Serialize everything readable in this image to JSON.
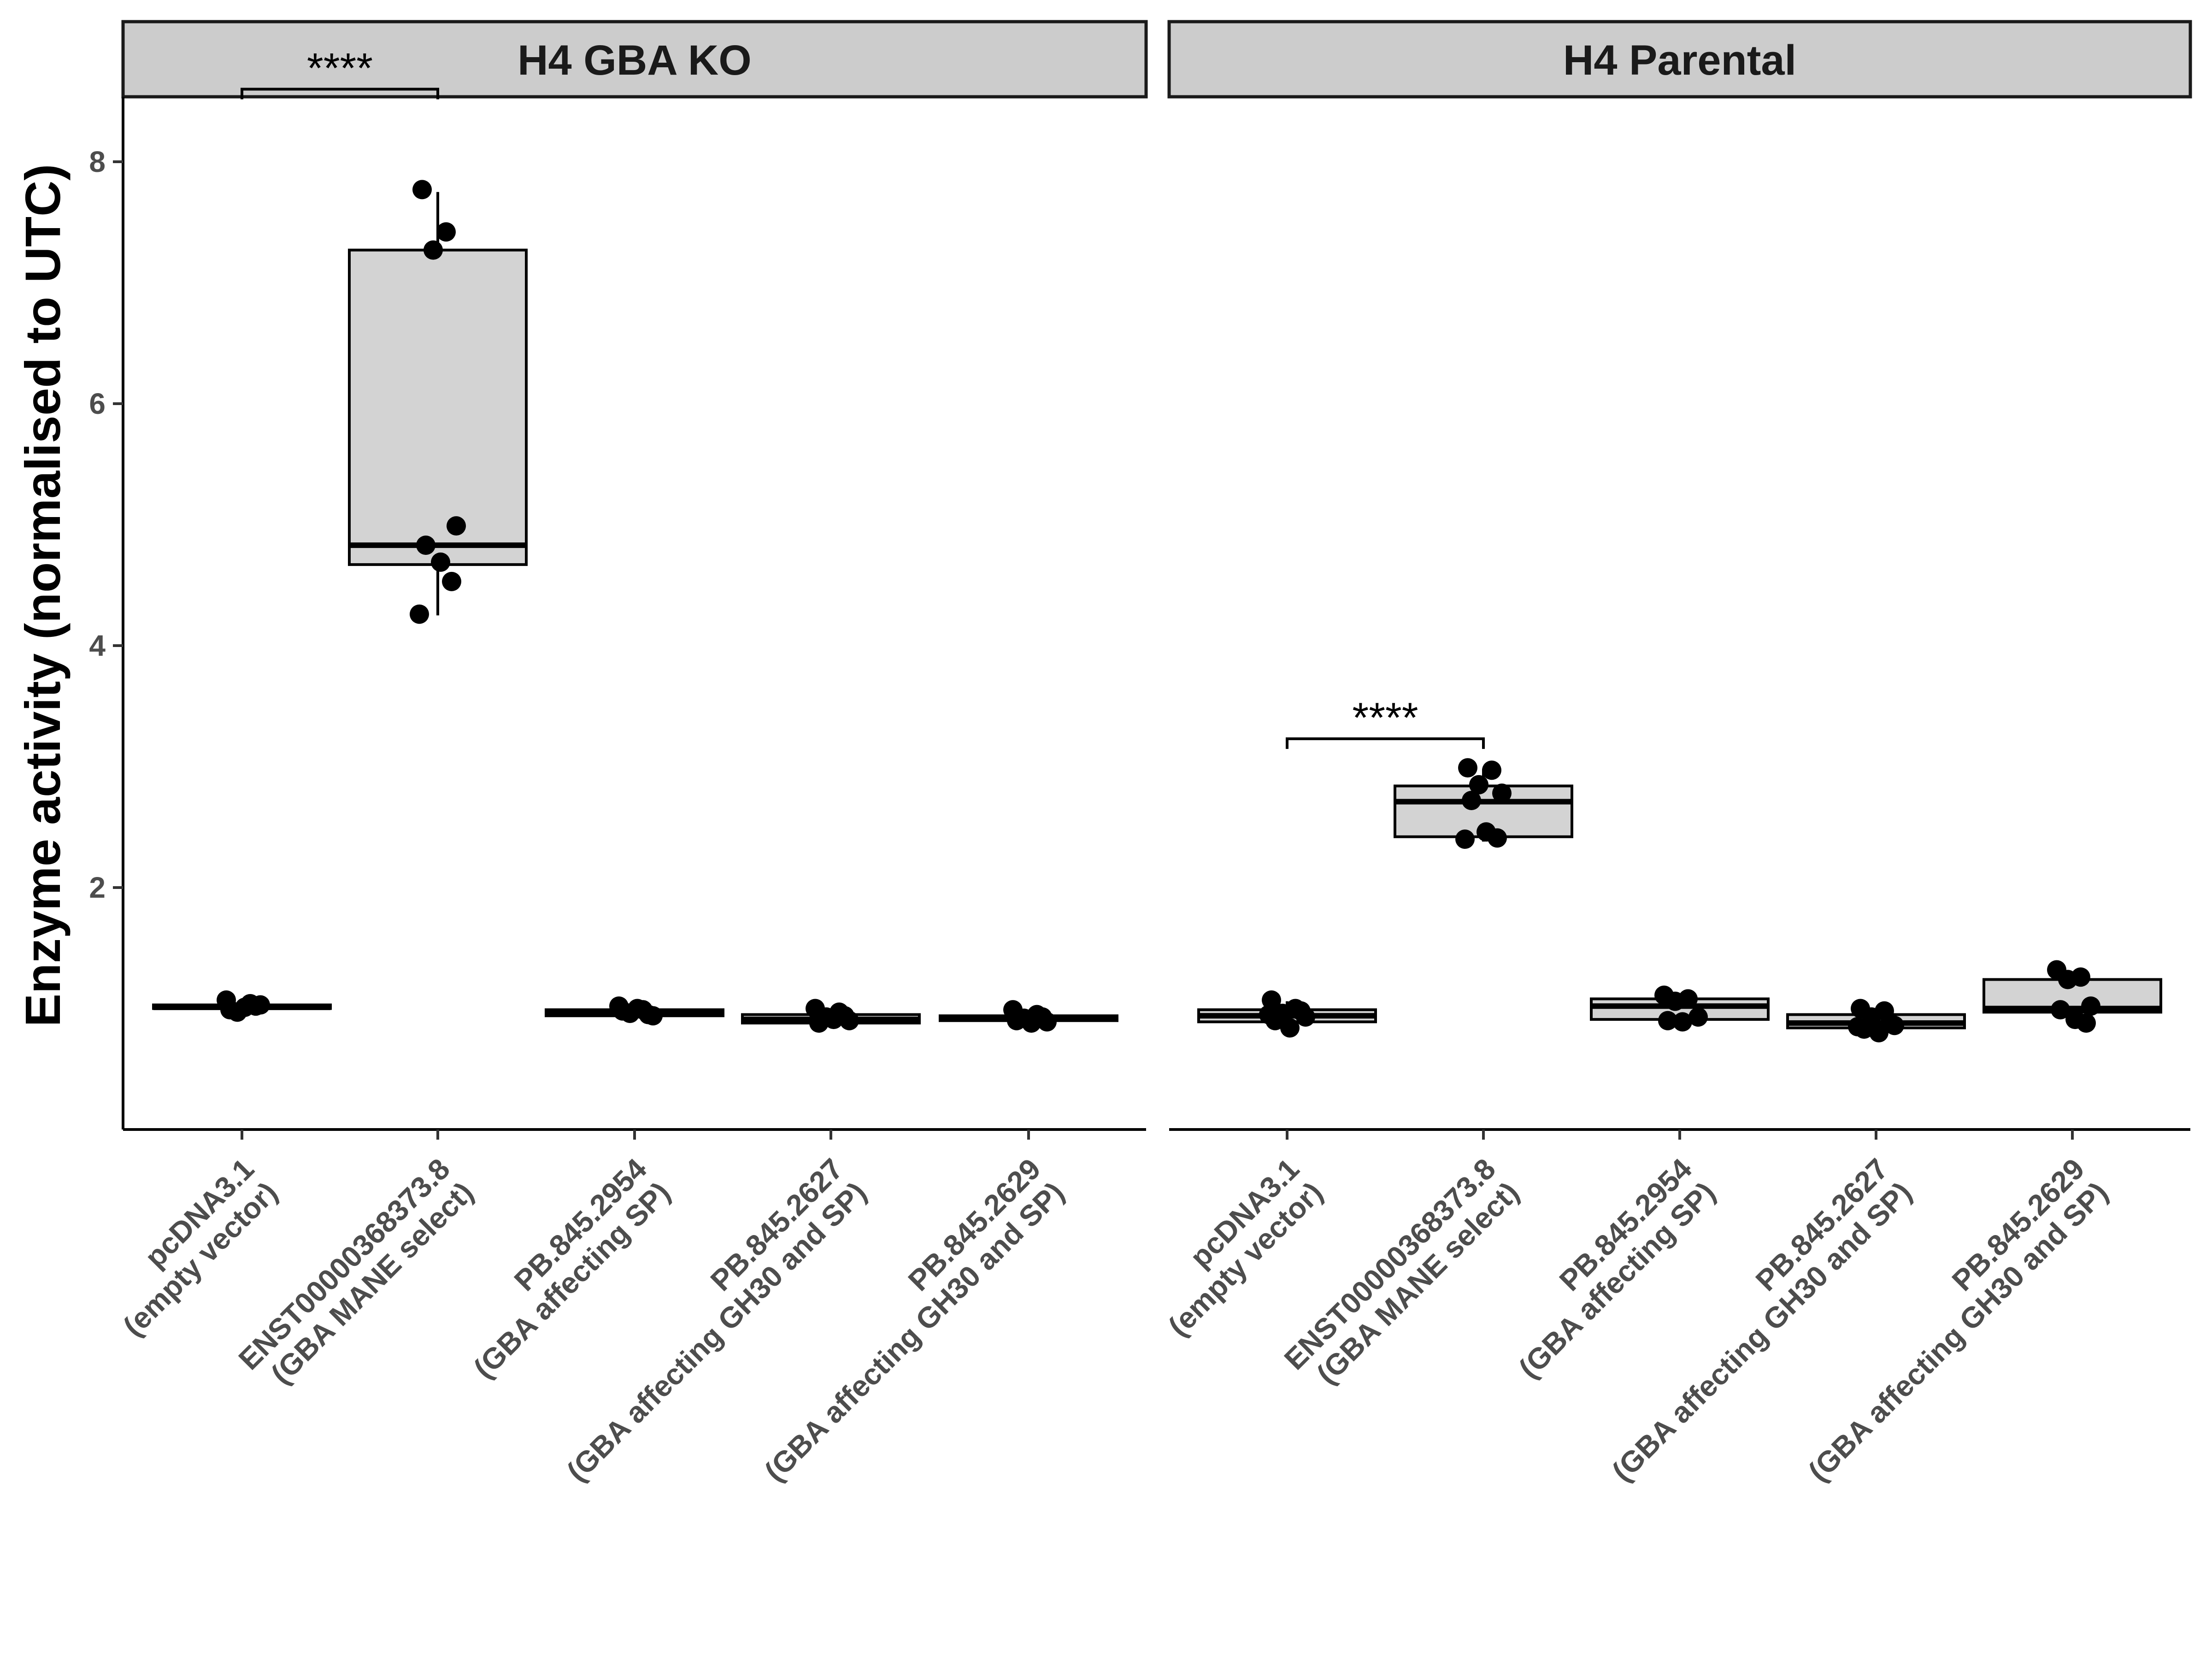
{
  "chart_data": {
    "type": "box",
    "ylabel": "Enzyme activity (normalised to UTC)",
    "ylim": [
      0,
      9
    ],
    "yticks": [
      2,
      4,
      6,
      8
    ],
    "categories": [
      [
        "pcDNA3.1",
        "(empty vector)"
      ],
      [
        "ENST00000368373.8",
        "(GBA MANE select)"
      ],
      [
        "PB.845.2954",
        "(GBA affecting SP)"
      ],
      [
        "PB.845.2627",
        "(GBA affecting GH30 and SP)"
      ],
      [
        "PB.845.2629",
        "(GBA affecting GH30 and SP)"
      ]
    ],
    "colors": {
      "box_fill": "#d3d3d3",
      "strip_fill": "#cccccc",
      "points": "#000000",
      "axis_text": "#4d4d4d"
    },
    "panels": [
      {
        "title": "H4 GBA KO",
        "groups": [
          {
            "category": 0,
            "box": {
              "min": 0.98,
              "q1": 1.0,
              "median": 1.01,
              "q3": 1.03,
              "max": 1.06
            },
            "points": [
              1.07,
              1.04,
              0.97,
              1.03,
              0.99,
              1.01,
              1.02
            ]
          },
          {
            "category": 1,
            "box": {
              "min": 4.25,
              "q1": 4.67,
              "median": 4.83,
              "q3": 7.27,
              "max": 7.75
            },
            "points": [
              7.77,
              7.42,
              7.27,
              4.99,
              4.83,
              4.69,
              4.53,
              4.26
            ]
          },
          {
            "category": 2,
            "box": {
              "min": 0.93,
              "q1": 0.94,
              "median": 0.96,
              "q3": 0.99,
              "max": 1.02
            },
            "points": [
              1.02,
              0.99,
              0.96,
              0.94,
              0.98,
              1.0,
              0.95
            ]
          },
          {
            "category": 3,
            "box": {
              "min": 0.87,
              "q1": 0.88,
              "median": 0.91,
              "q3": 0.95,
              "max": 0.99
            },
            "points": [
              1.0,
              0.97,
              0.93,
              0.9,
              0.88,
              0.91,
              0.94
            ]
          },
          {
            "category": 4,
            "box": {
              "min": 0.87,
              "q1": 0.9,
              "median": 0.92,
              "q3": 0.94,
              "max": 0.99
            },
            "points": [
              0.99,
              0.95,
              0.92,
              0.89,
              0.9,
              0.88,
              0.93
            ]
          }
        ],
        "comparisons": [
          {
            "from": 0,
            "to": 1,
            "label": "****",
            "y": 8.6
          }
        ]
      },
      {
        "title": "H4 Parental",
        "groups": [
          {
            "category": 0,
            "box": {
              "min": 0.83,
              "q1": 0.89,
              "median": 0.94,
              "q3": 0.99,
              "max": 1.06
            },
            "points": [
              1.07,
              1.0,
              0.96,
              0.93,
              0.9,
              0.84,
              0.98,
              0.95
            ]
          },
          {
            "category": 1,
            "box": {
              "min": 2.38,
              "q1": 2.42,
              "median": 2.71,
              "q3": 2.84,
              "max": 2.98
            },
            "points": [
              2.99,
              2.97,
              2.85,
              2.78,
              2.72,
              2.46,
              2.41,
              2.4
            ]
          },
          {
            "category": 2,
            "box": {
              "min": 0.88,
              "q1": 0.91,
              "median": 1.02,
              "q3": 1.08,
              "max": 1.11
            },
            "points": [
              1.11,
              1.08,
              1.06,
              0.93,
              0.9,
              0.89
            ]
          },
          {
            "category": 3,
            "box": {
              "min": 0.79,
              "q1": 0.84,
              "median": 0.88,
              "q3": 0.95,
              "max": 1.0
            },
            "points": [
              1.0,
              0.98,
              0.93,
              0.86,
              0.83,
              0.8,
              0.88,
              0.85
            ]
          },
          {
            "category": 4,
            "box": {
              "min": 0.88,
              "q1": 0.97,
              "median": 1.0,
              "q3": 1.24,
              "max": 1.3
            },
            "points": [
              1.32,
              1.26,
              1.24,
              1.02,
              0.99,
              0.91,
              0.88
            ]
          }
        ],
        "comparisons": [
          {
            "from": 0,
            "to": 1,
            "label": "****",
            "y": 3.23
          }
        ]
      }
    ]
  }
}
